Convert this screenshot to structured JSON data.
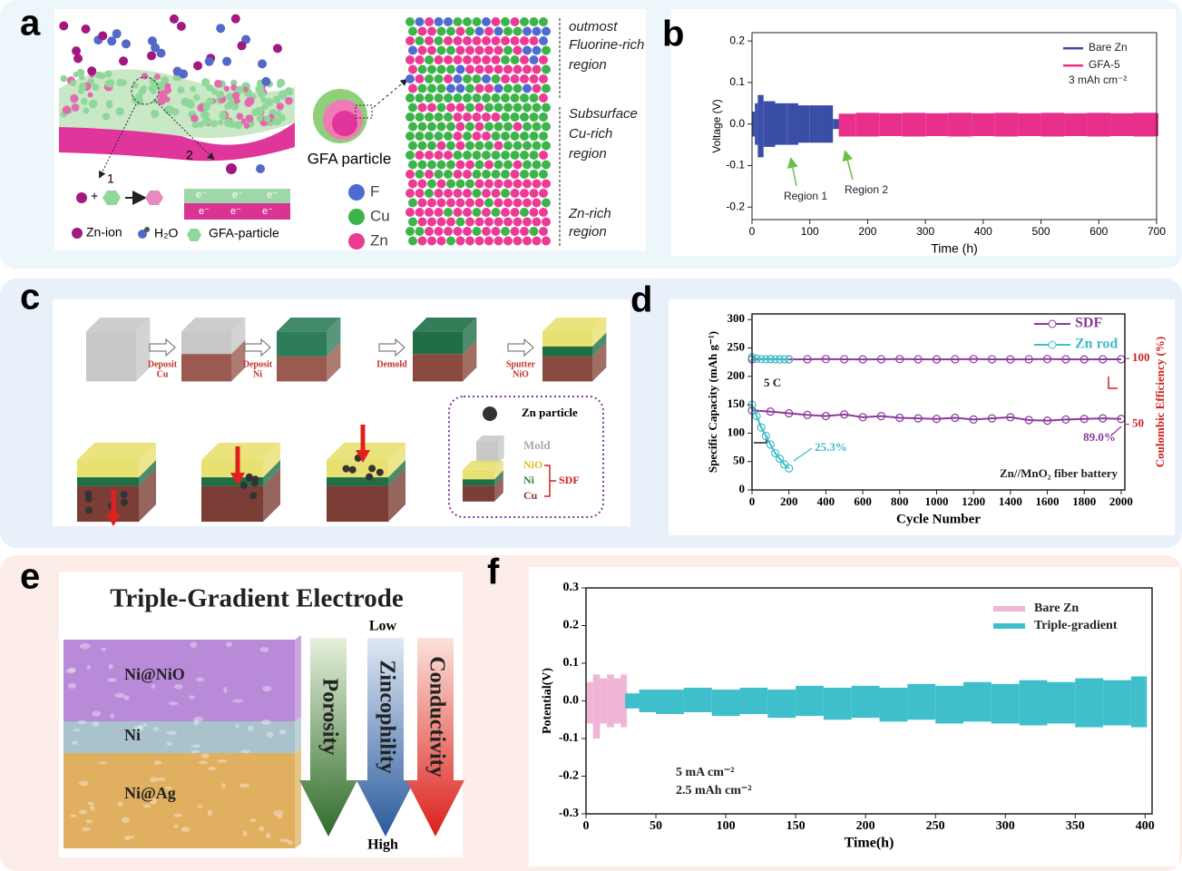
{
  "panel_labels": [
    "a",
    "b",
    "c",
    "d",
    "e",
    "f"
  ],
  "panel_a": {
    "steps": [
      "1",
      "2"
    ],
    "plus": "+",
    "electrons": [
      "e⁻",
      "e⁻",
      "e⁻",
      "e⁻",
      "e⁻",
      "e⁻"
    ],
    "legend": [
      "Zn-ion",
      "H₂O",
      "GFA-particle"
    ],
    "particle": "GFA particle",
    "elements": [
      "F",
      "Cu",
      "Zn"
    ],
    "regions": [
      [
        "outmost",
        "Fluorine-rich",
        "region"
      ],
      [
        "Subsurface",
        "Cu-rich",
        "region"
      ],
      [
        "Zn-rich",
        "region"
      ]
    ]
  },
  "panel_c": {
    "steps": [
      [
        "Deposit",
        "Cu"
      ],
      [
        "Deposit",
        "Ni"
      ],
      [
        "Demold"
      ],
      [
        "Sputter",
        "NiO"
      ]
    ],
    "legend": {
      "particle": "Zn particle",
      "mold": "Mold",
      "layers": [
        "NiO",
        "Ni",
        "Cu"
      ],
      "electrode": "SDF"
    }
  },
  "panel_e": {
    "title": "Triple-Gradient Electrode",
    "layers": [
      "Ni@NiO",
      "Ni",
      "Ni@Ag"
    ],
    "top": "Low",
    "bottom": "High",
    "gradients": [
      "Porosity",
      "Zincophility",
      "Conductivity"
    ]
  },
  "chart_data": [
    {
      "type": "band",
      "xlabel": "Time (h)",
      "ylabel": "Voltage (V)",
      "xlim": [
        0,
        700
      ],
      "xticks": [
        0,
        100,
        200,
        300,
        400,
        500,
        600,
        700
      ],
      "ylim": [
        -0.23,
        0.22
      ],
      "yticks": [
        -0.2,
        -0.1,
        {
          "value": 0,
          "label": "0.0"
        },
        0.1,
        0.2
      ],
      "legend": "upper right",
      "series": [
        {
          "name": "Bare Zn",
          "color": "#3b4ea6",
          "x": [
            0,
            5,
            10,
            20,
            40,
            60,
            80,
            100,
            120,
            140,
            150,
            165
          ],
          "upper": [
            0.03,
            0.05,
            0.07,
            0.055,
            0.05,
            0.05,
            0.045,
            0.045,
            0.045,
            0.012,
            0.012,
            0.012
          ],
          "lower": [
            -0.03,
            -0.05,
            -0.08,
            -0.055,
            -0.05,
            -0.05,
            -0.045,
            -0.045,
            -0.045,
            -0.012,
            -0.012,
            -0.012
          ]
        },
        {
          "name": "GFA-5",
          "color": "#e8308a",
          "x": [
            150,
            180,
            220,
            260,
            300,
            340,
            380,
            420,
            460,
            500,
            540,
            580,
            620,
            660,
            700
          ],
          "upper": [
            0.025,
            0.027,
            0.026,
            0.027,
            0.026,
            0.027,
            0.026,
            0.027,
            0.026,
            0.027,
            0.026,
            0.027,
            0.026,
            0.027,
            0.026
          ],
          "lower": [
            -0.03,
            -0.03,
            -0.029,
            -0.03,
            -0.029,
            -0.03,
            -0.029,
            -0.03,
            -0.029,
            -0.03,
            -0.029,
            -0.03,
            -0.029,
            -0.03,
            -0.029
          ]
        }
      ],
      "annotations": [
        "3 mAh cm⁻²",
        "Region 1",
        "Region 2"
      ]
    },
    {
      "type": "dual-line",
      "xlabel": "Cycle Number",
      "ylabel": "Specific Capacity (mAh g⁻¹)",
      "y2label": "Coulombic Efficiency (%)",
      "xlim": [
        0,
        2020
      ],
      "xticks": [
        0,
        200,
        400,
        600,
        800,
        1000,
        1200,
        1400,
        1600,
        1800,
        2000
      ],
      "ylim": [
        0,
        310
      ],
      "yticks": [
        0,
        50,
        100,
        150,
        200,
        250,
        300
      ],
      "y2lim": [
        0,
        134
      ],
      "y2ticks": [
        50,
        100
      ],
      "legend": "upper right",
      "series": [
        {
          "name": "SDF",
          "color": "#8b3a9c",
          "x": [
            0,
            100,
            200,
            300,
            400,
            500,
            600,
            700,
            800,
            900,
            1000,
            1100,
            1200,
            1300,
            1400,
            1500,
            1600,
            1700,
            1800,
            1900,
            2000
          ],
          "values": [
            140,
            138,
            135,
            132,
            130,
            133,
            128,
            130,
            127,
            126,
            125,
            127,
            124,
            126,
            128,
            123,
            122,
            124,
            125,
            126,
            125
          ]
        },
        {
          "name": "Zn rod",
          "color": "#3fbcc6",
          "x": [
            0,
            25,
            50,
            75,
            100,
            125,
            150,
            175,
            200
          ],
          "values": [
            150,
            130,
            110,
            95,
            80,
            65,
            55,
            45,
            38
          ]
        },
        {
          "color": "#8b3a9c",
          "axis": "y2",
          "x": [
            0,
            100,
            200,
            300,
            400,
            500,
            600,
            700,
            800,
            900,
            1000,
            1100,
            1200,
            1300,
            1400,
            1500,
            1600,
            1700,
            1800,
            1900,
            2000
          ],
          "values": [
            99.5,
            99.6,
            99.4,
            99.5,
            99.6,
            99.5,
            99.4,
            99.5,
            99.6,
            99.5,
            99.4,
            99.5,
            99.6,
            99.5,
            99.4,
            99.5,
            99.6,
            99.5,
            99.4,
            99.5,
            99.5
          ]
        },
        {
          "color": "#3fbcc6",
          "axis": "y2",
          "x": [
            0,
            25,
            50,
            75,
            100,
            125,
            150,
            175,
            200
          ],
          "values": [
            101,
            100,
            99.6,
            99.5,
            99.6,
            99.5,
            99.4,
            99.5,
            99.5
          ]
        }
      ],
      "annotations": [
        "5 C",
        "25.3%",
        "89.0%",
        "Zn//MnO₂ fiber battery"
      ]
    },
    {
      "type": "band",
      "xlabel": "Time(h)",
      "ylabel": "Potential(V)",
      "xlim": [
        0,
        405
      ],
      "xticks": [
        0,
        50,
        100,
        150,
        200,
        250,
        300,
        350,
        400
      ],
      "ylim": [
        -0.3,
        0.3
      ],
      "yticks": [
        -0.3,
        -0.2,
        -0.1,
        {
          "value": 0,
          "label": "0.0"
        },
        0.1,
        0.2,
        0.3
      ],
      "legend": "upper right",
      "series": [
        {
          "name": "Bare Zn",
          "color": "#efb4d6",
          "x": [
            0,
            5,
            10,
            15,
            20,
            25,
            28
          ],
          "upper": [
            0.05,
            0.07,
            0.06,
            0.07,
            0.06,
            0.07,
            0.07
          ],
          "lower": [
            -0.06,
            -0.1,
            -0.06,
            -0.07,
            -0.06,
            -0.07,
            -0.07
          ]
        },
        {
          "name": "Triple-gradient",
          "color": "#3ebfcb",
          "x": [
            28,
            38,
            50,
            70,
            90,
            110,
            130,
            150,
            170,
            190,
            210,
            230,
            250,
            270,
            290,
            310,
            330,
            350,
            370,
            390,
            400
          ],
          "upper": [
            0.02,
            0.03,
            0.03,
            0.035,
            0.03,
            0.035,
            0.03,
            0.04,
            0.035,
            0.04,
            0.035,
            0.045,
            0.04,
            0.05,
            0.045,
            0.055,
            0.05,
            0.06,
            0.055,
            0.065,
            0.065
          ],
          "lower": [
            -0.02,
            -0.03,
            -0.035,
            -0.03,
            -0.04,
            -0.035,
            -0.045,
            -0.04,
            -0.05,
            -0.045,
            -0.055,
            -0.05,
            -0.06,
            -0.055,
            -0.06,
            -0.065,
            -0.06,
            -0.07,
            -0.065,
            -0.07,
            -0.07
          ]
        }
      ],
      "annotations": [
        "5 mA cm⁻²",
        "2.5 mAh cm⁻²"
      ]
    }
  ]
}
